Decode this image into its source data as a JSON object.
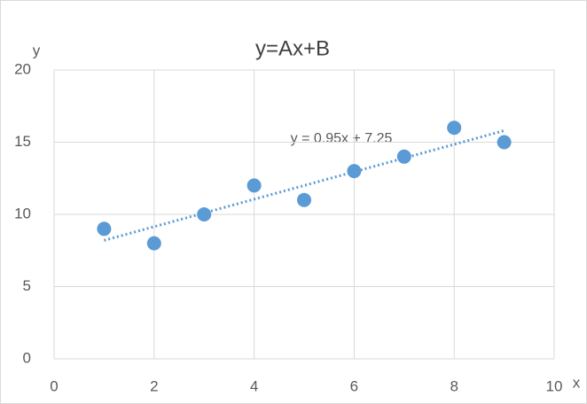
{
  "chart_data": {
    "type": "scatter",
    "title": "y=Ax+B",
    "x_label": "x",
    "y_label": "y",
    "series": [
      {
        "x": [
          1,
          2,
          3,
          4,
          5,
          6,
          7,
          8,
          9
        ],
        "values": [
          9,
          8,
          10,
          12,
          11,
          13,
          14,
          16,
          15
        ],
        "color": "#5b9bd5"
      }
    ],
    "trendline": {
      "label": "y = 0.95x + 7.25",
      "x": [
        1,
        9
      ],
      "values": [
        8.2,
        15.8
      ],
      "color": "#5b9bd5"
    },
    "xlim": [
      0,
      10
    ],
    "xticks": [
      0,
      2,
      4,
      6,
      8,
      10
    ],
    "ylim": [
      0,
      20
    ],
    "yticks": [
      0,
      5,
      10,
      15,
      20
    ],
    "grid": true
  }
}
